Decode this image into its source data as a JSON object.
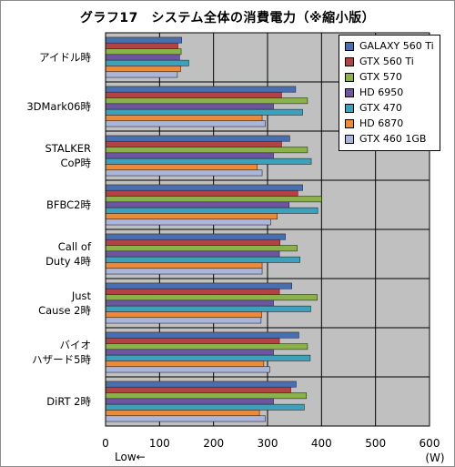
{
  "chart_data": {
    "type": "bar",
    "orientation": "horizontal",
    "title": "グラフ17　システム全体の消費電力（※縮小版）",
    "categories": [
      [
        "アイドル時"
      ],
      [
        "3DMark06時"
      ],
      [
        "STALKER",
        "CoP時"
      ],
      [
        "BFBC2時"
      ],
      [
        "Call of",
        "Duty 4時"
      ],
      [
        "Just",
        "Cause 2時"
      ],
      [
        "バイオ",
        "ハザード5時"
      ],
      [
        "DiRT 2時"
      ]
    ],
    "series": [
      {
        "name": "GALAXY 560 Ti",
        "color": "#4a6fb0",
        "values": [
          141,
          352,
          341,
          365,
          333,
          345,
          358,
          353
        ]
      },
      {
        "name": "GTX 560 Ti",
        "color": "#b04343",
        "values": [
          134,
          326,
          326,
          356,
          323,
          322,
          322,
          343
        ]
      },
      {
        "name": "GTX 570",
        "color": "#8ab14c",
        "values": [
          140,
          374,
          374,
          400,
          355,
          392,
          374,
          372
        ]
      },
      {
        "name": "HD 6950",
        "color": "#6e55a0",
        "values": [
          137,
          311,
          311,
          340,
          322,
          311,
          311,
          311
        ]
      },
      {
        "name": "GTX 470",
        "color": "#3aa1bf",
        "values": [
          154,
          365,
          381,
          393,
          360,
          380,
          379,
          368
        ]
      },
      {
        "name": "HD 6870",
        "color": "#ee8a35",
        "values": [
          139,
          290,
          281,
          318,
          290,
          289,
          293,
          285
        ]
      },
      {
        "name": "GTX 460 1GB",
        "color": "#a9b5db",
        "values": [
          133,
          296,
          290,
          306,
          290,
          288,
          304,
          296
        ]
      }
    ],
    "xlim": [
      0,
      600
    ],
    "xticks": [
      "0",
      "100",
      "200",
      "300",
      "400",
      "500",
      "600"
    ],
    "xlabel": "(W)",
    "low_note": "Low←",
    "grid": true,
    "legend_position": "top-right"
  }
}
